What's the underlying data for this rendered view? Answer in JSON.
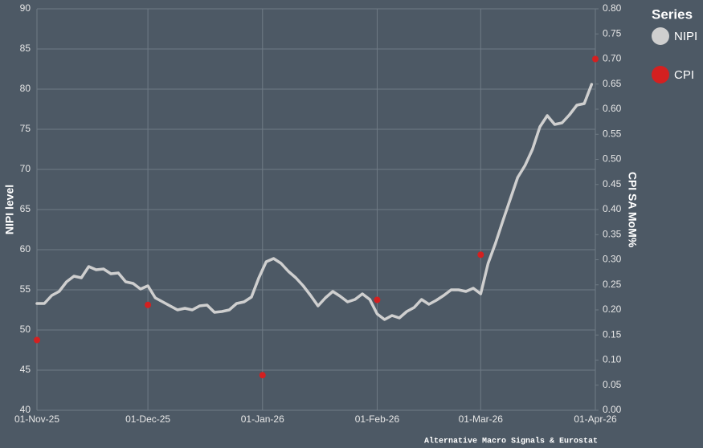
{
  "chart_data": {
    "type": "line",
    "caption": "Alternative Macro Signals & Eurostat",
    "ylabel": "NIPI level",
    "y2label": "CPI SA MoM%",
    "legend_title": "Series",
    "legend": "right",
    "grid": true,
    "xlim": [
      "2025-11-01",
      "2026-04-01"
    ],
    "xticks": [
      {
        "value": "2025-11-01",
        "label": "01-Nov-25"
      },
      {
        "value": "2025-12-01",
        "label": "01-Dec-25"
      },
      {
        "value": "2026-01-01",
        "label": "01-Jan-26"
      },
      {
        "value": "2026-02-01",
        "label": "01-Feb-26"
      },
      {
        "value": "2026-03-01",
        "label": "01-Mar-26"
      },
      {
        "value": "2026-04-01",
        "label": "01-Apr-26"
      }
    ],
    "ylim": [
      40,
      90
    ],
    "yticks": [
      40,
      45,
      50,
      55,
      60,
      65,
      70,
      75,
      80,
      85,
      90
    ],
    "y2lim": [
      0,
      0.8
    ],
    "y2ticks": [
      {
        "value": 0,
        "label": "0.00"
      },
      {
        "value": 0.05,
        "label": "0.05"
      },
      {
        "value": 0.1,
        "label": "0.10"
      },
      {
        "value": 0.15,
        "label": "0.15"
      },
      {
        "value": 0.2,
        "label": "0.20"
      },
      {
        "value": 0.25,
        "label": "0.25"
      },
      {
        "value": 0.3,
        "label": "0.30"
      },
      {
        "value": 0.35,
        "label": "0.35"
      },
      {
        "value": 0.4,
        "label": "0.40"
      },
      {
        "value": 0.45,
        "label": "0.45"
      },
      {
        "value": 0.5,
        "label": "0.50"
      },
      {
        "value": 0.55,
        "label": "0.55"
      },
      {
        "value": 0.6,
        "label": "0.60"
      },
      {
        "value": 0.65,
        "label": "0.65"
      },
      {
        "value": 0.7,
        "label": "0.70"
      },
      {
        "value": 0.75,
        "label": "0.75"
      },
      {
        "value": 0.8,
        "label": "0.80"
      }
    ],
    "series": [
      {
        "name": "NIPI",
        "color": "#cfcfcf",
        "style": "line",
        "x": [
          "2025-11-01",
          "2025-11-03",
          "2025-11-05",
          "2025-11-07",
          "2025-11-09",
          "2025-11-11",
          "2025-11-13",
          "2025-11-15",
          "2025-11-17",
          "2025-11-19",
          "2025-11-21",
          "2025-11-23",
          "2025-11-25",
          "2025-11-27",
          "2025-11-29",
          "2025-12-01",
          "2025-12-03",
          "2025-12-05",
          "2025-12-07",
          "2025-12-09",
          "2025-12-11",
          "2025-12-13",
          "2025-12-15",
          "2025-12-17",
          "2025-12-19",
          "2025-12-21",
          "2025-12-23",
          "2025-12-25",
          "2025-12-27",
          "2025-12-29",
          "2025-12-31",
          "2026-01-02",
          "2026-01-04",
          "2026-01-06",
          "2026-01-08",
          "2026-01-10",
          "2026-01-12",
          "2026-01-14",
          "2026-01-16",
          "2026-01-18",
          "2026-01-20",
          "2026-01-22",
          "2026-01-24",
          "2026-01-26",
          "2026-01-28",
          "2026-01-30",
          "2026-02-01",
          "2026-02-03",
          "2026-02-05",
          "2026-02-07",
          "2026-02-09",
          "2026-02-11",
          "2026-02-13",
          "2026-02-15",
          "2026-02-17",
          "2026-02-19",
          "2026-02-21",
          "2026-02-23",
          "2026-02-25",
          "2026-02-27",
          "2026-03-01",
          "2026-03-03",
          "2026-03-05",
          "2026-03-07",
          "2026-03-09",
          "2026-03-11",
          "2026-03-13",
          "2026-03-15",
          "2026-03-17",
          "2026-03-19",
          "2026-03-21",
          "2026-03-23",
          "2026-03-25",
          "2026-03-27",
          "2026-03-29",
          "2026-03-31"
        ],
        "values": [
          53.3,
          53.3,
          54.3,
          54.8,
          56.0,
          56.7,
          56.5,
          57.9,
          57.5,
          57.6,
          57.0,
          57.1,
          56.0,
          55.8,
          55.1,
          55.5,
          54.0,
          53.5,
          53.0,
          52.5,
          52.7,
          52.5,
          53.0,
          53.1,
          52.2,
          52.3,
          52.5,
          53.3,
          53.5,
          54.1,
          56.5,
          58.5,
          58.9,
          58.3,
          57.3,
          56.5,
          55.5,
          54.3,
          53.0,
          54.0,
          54.8,
          54.2,
          53.5,
          53.8,
          54.5,
          53.8,
          52.0,
          51.3,
          51.8,
          51.5,
          52.3,
          52.8,
          53.8,
          53.2,
          53.7,
          54.3,
          55.0,
          55.0,
          54.8,
          55.2,
          54.5,
          58.3,
          60.8,
          63.6,
          66.3,
          69.0,
          70.5,
          72.5,
          75.3,
          76.7,
          75.6,
          75.8,
          76.8,
          78.0,
          78.2,
          80.6
        ]
      },
      {
        "name": "CPI",
        "color": "#d42020",
        "style": "points",
        "axis": "y2",
        "x": [
          "2025-11-01",
          "2025-12-01",
          "2026-01-01",
          "2026-02-01",
          "2026-03-01",
          "2026-04-01"
        ],
        "values": [
          0.14,
          0.21,
          0.07,
          0.22,
          0.31,
          0.7
        ]
      }
    ]
  }
}
